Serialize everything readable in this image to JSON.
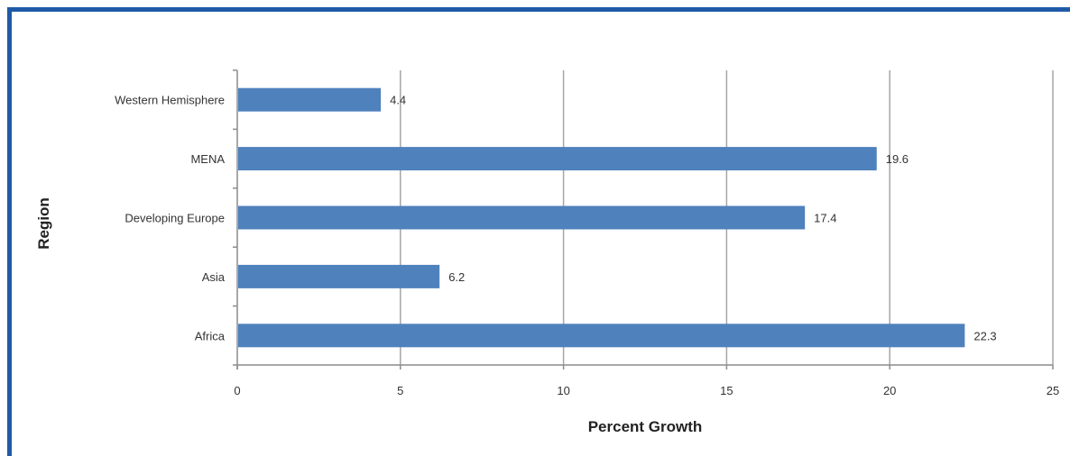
{
  "chart_data": {
    "type": "bar",
    "orientation": "horizontal",
    "categories": [
      "Western Hemisphere",
      "MENA",
      "Developing Europe",
      "Asia",
      "Africa"
    ],
    "values": [
      4.4,
      19.6,
      17.4,
      6.2,
      22.3
    ],
    "data_labels": [
      "4.4",
      "19.6",
      "17.4",
      "6.2",
      "22.3"
    ],
    "xlabel": "Percent Growth",
    "ylabel": "Region",
    "xlim": [
      0,
      25
    ],
    "xticks": [
      "0",
      "5",
      "10",
      "15",
      "20",
      "25"
    ],
    "grid": "vertical",
    "legend": "none",
    "bar_color": "#4f81bd",
    "frame_color": "#1f5aa6"
  }
}
